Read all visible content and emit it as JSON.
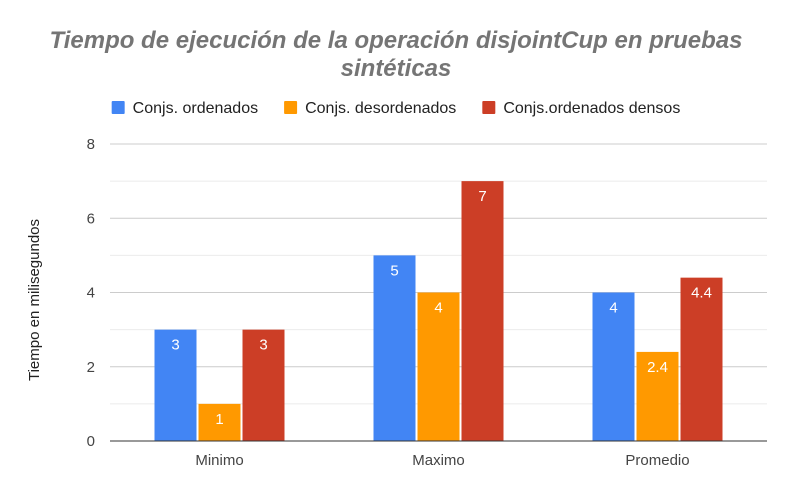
{
  "chart_data": {
    "type": "bar",
    "title": "Tiempo de ejecución de la operación disjointCup en pruebas sintéticas",
    "title_lines": [
      "Tiempo de ejecución de la operación disjointCup en pruebas",
      "sintéticas"
    ],
    "xlabel": "",
    "ylabel": "Tiempo en milisegundos",
    "categories": [
      "Minimo",
      "Maximo",
      "Promedio"
    ],
    "series": [
      {
        "name": "Conjs. ordenados",
        "color": "#4285f4",
        "values": [
          3,
          5,
          4
        ],
        "labels": [
          "3",
          "5",
          "4"
        ]
      },
      {
        "name": "Conjs. desordenados",
        "color": "#ff9900",
        "values": [
          1,
          4,
          2.4
        ],
        "labels": [
          "1",
          "4",
          "2.4"
        ]
      },
      {
        "name": "Conjs.ordenados densos",
        "color": "#cc3e26",
        "values": [
          3,
          7,
          4.4
        ],
        "labels": [
          "3",
          "7",
          "4.4"
        ]
      }
    ],
    "ylim": [
      0,
      8
    ],
    "yticks": [
      0,
      2,
      4,
      6,
      8
    ],
    "grid": true,
    "legend_position": "top"
  }
}
